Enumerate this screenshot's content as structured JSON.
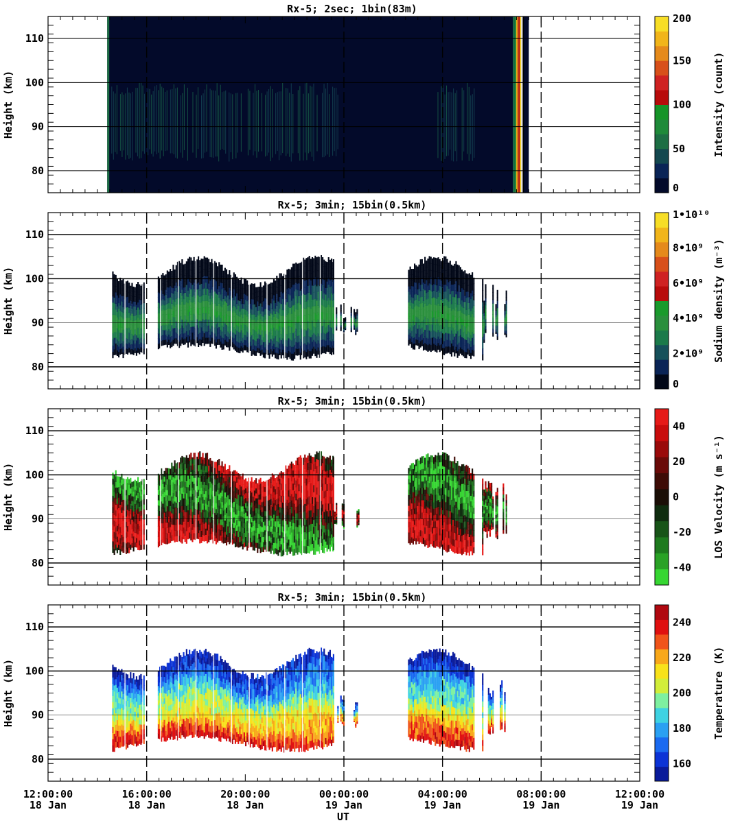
{
  "chart_data": [
    {
      "type": "heatmap",
      "title": "Rx-5;  2sec; 1bin(83m)",
      "ylabel": "Height (km)",
      "yticks": [
        "80",
        "90",
        "100",
        "110"
      ],
      "ylim": [
        75,
        115
      ],
      "colorbar": {
        "label": "Intensity (count)",
        "ticks": [
          "0",
          "50",
          "100",
          "150",
          "200"
        ],
        "range": [
          0,
          200
        ]
      },
      "colors": [
        "#030a2a",
        "#0a2456",
        "#14484f",
        "#1d6e44",
        "#228b3c",
        "#1a8f29",
        "#b80b0b",
        "#cf2222",
        "#d8501a",
        "#e58a1b",
        "#f1b51a",
        "#f7de26"
      ]
    },
    {
      "type": "heatmap",
      "title": "Rx-5; 3min; 15bin(0.5km)",
      "ylabel": "Height (km)",
      "yticks": [
        "80",
        "90",
        "100",
        "110"
      ],
      "ylim": [
        75,
        115
      ],
      "colorbar": {
        "label": "Sodium density (m⁻³)",
        "ticks": [
          "0",
          "2•10⁹",
          "4•10⁹",
          "6•10⁹",
          "8•10⁹",
          "1•10¹⁰"
        ],
        "range": [
          0,
          10000000000
        ]
      }
    },
    {
      "type": "heatmap",
      "title": "Rx-5; 3min; 15bin(0.5km)",
      "ylabel": "Height (km)",
      "yticks": [
        "80",
        "90",
        "100",
        "110"
      ],
      "ylim": [
        75,
        115
      ],
      "colorbar": {
        "label": "LOS Velocity (m s⁻¹)",
        "ticks": [
          "-40",
          "-20",
          "0",
          "20",
          "40"
        ],
        "range": [
          -50,
          50
        ]
      }
    },
    {
      "type": "heatmap",
      "title": "Rx-5; 3min; 15bin(0.5km)",
      "ylabel": "Height (km)",
      "yticks": [
        "80",
        "90",
        "100",
        "110"
      ],
      "ylim": [
        75,
        115
      ],
      "colorbar": {
        "label": "Temperature (K)",
        "ticks": [
          "160",
          "180",
          "200",
          "220",
          "240"
        ],
        "range": [
          150,
          250
        ]
      }
    }
  ],
  "xaxis": {
    "label": "UT",
    "ticks": [
      {
        "time": "12:00:00",
        "date": "18 Jan"
      },
      {
        "time": "16:00:00",
        "date": "18 Jan"
      },
      {
        "time": "20:00:00",
        "date": "18 Jan"
      },
      {
        "time": "00:00:00",
        "date": "19 Jan"
      },
      {
        "time": "04:00:00",
        "date": "19 Jan"
      },
      {
        "time": "08:00:00",
        "date": "19 Jan"
      },
      {
        "time": "12:00:00",
        "date": "19 Jan"
      }
    ],
    "range_hours": [
      0,
      24
    ],
    "day_boundaries_hours": [
      4,
      12,
      16,
      20
    ]
  },
  "observation": {
    "start_hour": 2.4,
    "end_hour": 19.5,
    "data_segments_hours": [
      [
        2.6,
        3.9
      ],
      [
        4.45,
        11.55
      ],
      [
        11.55,
        12.6
      ],
      [
        14.6,
        17.25
      ],
      [
        17.6,
        18.6
      ]
    ]
  }
}
